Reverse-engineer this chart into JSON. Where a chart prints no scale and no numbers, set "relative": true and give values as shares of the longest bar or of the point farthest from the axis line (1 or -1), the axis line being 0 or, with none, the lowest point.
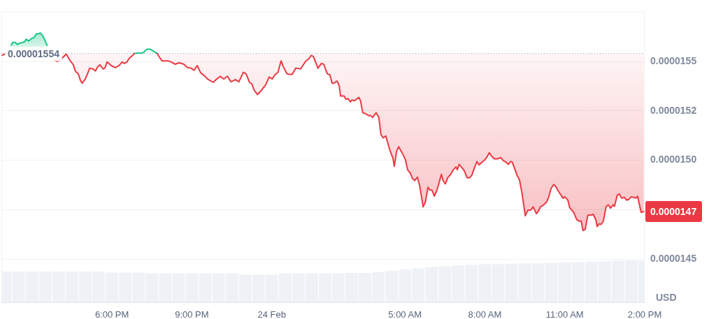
{
  "chart_data": [
    {
      "type": "line",
      "ylabel": "USD",
      "x": [
        "--02-23T13:53",
        "--02-23T14:01",
        "--02-23T14:13",
        "--02-23T14:16",
        "--02-23T14:22",
        "--02-23T14:27",
        "--02-23T14:32",
        "--02-23T14:38",
        "--02-23T14:43",
        "--02-23T14:47",
        "--02-23T14:52",
        "--02-23T14:59",
        "--02-23T15:04",
        "--02-23T15:10",
        "--02-23T15:14",
        "--02-23T15:19",
        "--02-23T15:25",
        "--02-23T15:34",
        "--02-23T15:38",
        "--02-23T15:50",
        "--02-23T15:57",
        "--02-23T16:05",
        "--02-23T16:17",
        "--02-23T16:25",
        "--02-23T16:33",
        "--02-23T16:38",
        "--02-23T16:44",
        "--02-23T16:49",
        "--02-23T16:53",
        "--02-23T17:00",
        "--02-23T17:05",
        "--02-23T17:10",
        "--02-23T17:17",
        "--02-23T17:23",
        "--02-23T17:28",
        "--02-23T17:33",
        "--02-23T17:40",
        "--02-23T17:44",
        "--02-23T17:49",
        "--02-23T17:55",
        "--02-23T18:00",
        "--02-23T18:08",
        "--02-23T18:16",
        "--02-23T18:23",
        "--02-23T18:28",
        "--02-23T18:34",
        "--02-23T18:39",
        "--02-23T18:47",
        "--02-23T18:50",
        "--02-23T19:00",
        "--02-23T19:06",
        "--02-23T19:11",
        "--02-23T19:19",
        "--02-23T19:26",
        "--02-23T19:34",
        "--02-23T19:42",
        "--02-23T19:47",
        "--02-23T19:53",
        "--02-23T20:06",
        "--02-23T20:14",
        "--02-23T20:22",
        "--02-23T20:32",
        "--02-23T20:42",
        "--02-23T20:50",
        "--02-23T20:58",
        "--02-23T21:05",
        "--02-23T21:12",
        "--02-23T21:20",
        "--02-23T21:28",
        "--02-23T21:35",
        "--02-23T21:48",
        "--02-23T21:56",
        "--02-23T22:04",
        "--02-23T22:12",
        "--02-23T22:20",
        "--02-23T22:28",
        "--02-23T22:38",
        "--02-23T22:46",
        "--02-23T22:56",
        "--02-23T23:02",
        "--02-23T23:10",
        "--02-23T23:15",
        "--02-23T23:20",
        "--02-23T23:28",
        "--02-23T23:35",
        "--02-23T23:46",
        "--02-23T23:54",
        "--02-24T00:01",
        "--02-24T00:07",
        "--02-24T00:14",
        "--02-24T00:21",
        "--02-24T00:26",
        "--02-24T00:34",
        "--02-24T00:38",
        "--02-24T00:46",
        "--02-24T00:54",
        "--02-24T01:05",
        "--02-24T01:16",
        "--02-24T01:24",
        "--02-24T01:29",
        "--02-24T01:34",
        "--02-24T01:44",
        "--02-24T01:52",
        "--02-24T01:57",
        "--02-24T02:05",
        "--02-24T02:11",
        "--02-24T02:16",
        "--02-24T02:20",
        "--02-24T02:27",
        "--02-24T02:32",
        "--02-24T02:35",
        "--02-24T02:43",
        "--02-24T02:47",
        "--02-24T02:52",
        "--02-24T02:57",
        "--02-24T03:00",
        "--02-24T03:06",
        "--02-24T03:16",
        "--02-24T03:20",
        "--02-24T03:25",
        "--02-24T03:31",
        "--02-24T03:38",
        "--02-24T03:43",
        "--02-24T03:47",
        "--02-24T03:55",
        "--02-24T04:01",
        "--02-24T04:06",
        "--02-24T04:11",
        "--02-24T04:17",
        "--02-24T04:22",
        "--02-24T04:26",
        "--02-24T04:33",
        "--02-24T04:36",
        "--02-24T04:41",
        "--02-24T04:46",
        "--02-24T04:50",
        "--02-24T04:56",
        "--02-24T05:01",
        "--02-24T05:06",
        "--02-24T05:12",
        "--02-24T05:17",
        "--02-24T05:22",
        "--02-24T05:28",
        "--02-24T05:33",
        "--02-24T05:41",
        "--02-24T05:46",
        "--02-24T05:52",
        "--02-24T05:56",
        "--02-24T06:01",
        "--02-24T06:06",
        "--02-24T06:11",
        "--02-24T06:15",
        "--02-24T06:22",
        "--02-24T06:26",
        "--02-24T06:31",
        "--02-24T06:37",
        "--02-24T06:42",
        "--02-24T06:49",
        "--02-24T06:55",
        "--02-24T06:58",
        "--02-24T07:02",
        "--02-24T07:07",
        "--02-24T07:13",
        "--02-24T07:20",
        "--02-24T07:26",
        "--02-24T07:31",
        "--02-24T07:35",
        "--02-24T07:42",
        "--02-24T07:47",
        "--02-24T07:55",
        "--02-24T07:59",
        "--02-24T08:05",
        "--02-24T08:10",
        "--02-24T08:15",
        "--02-24T08:21",
        "--02-24T08:29",
        "--02-24T08:35",
        "--02-24T08:42",
        "--02-24T08:48",
        "--02-24T08:53",
        "--02-24T08:58",
        "--02-24T09:02",
        "--02-24T09:08",
        "--02-24T09:13",
        "--02-24T09:18",
        "--02-24T09:24",
        "--02-24T09:31",
        "--02-24T09:37",
        "--02-24T09:43",
        "--02-24T09:49",
        "--02-24T09:56",
        "--02-24T10:01",
        "--02-24T10:05",
        "--02-24T10:11",
        "--02-24T10:19",
        "--02-24T10:24",
        "--02-24T10:29",
        "--02-24T10:35",
        "--02-24T10:40",
        "--02-24T10:44",
        "--02-24T10:51",
        "--02-24T10:56",
        "--02-24T11:00",
        "--02-24T11:07",
        "--02-24T11:11",
        "--02-24T11:20",
        "--02-24T11:27",
        "--02-24T11:32",
        "--02-24T11:37",
        "--02-24T11:41",
        "--02-24T11:46",
        "--02-24T11:52",
        "--02-24T11:59",
        "--02-24T12:04",
        "--02-24T12:10",
        "--02-24T12:13",
        "--02-24T12:17",
        "--02-24T12:22",
        "--02-24T12:27",
        "--02-24T12:33",
        "--02-24T12:38",
        "--02-24T12:43",
        "--02-24T12:49",
        "--02-24T12:52",
        "--02-24T12:58",
        "--02-24T13:03",
        "--02-24T13:08",
        "--02-24T13:14",
        "--02-24T13:19",
        "--02-24T13:24",
        "--02-24T13:30",
        "--02-24T13:35",
        "--02-24T13:40",
        "--02-24T13:44",
        "--02-24T13:52",
        "--02-24T13:58"
      ],
      "series": [
        {
          "color": "#ea3943",
          "values": [
            1.5531e-05,
            1.554e-05,
            null,
            null,
            null,
            null,
            null,
            null,
            null,
            null,
            null,
            null,
            null,
            null,
            null,
            null,
            null,
            null,
            null,
            1.5507e-05,
            1.55e-05,
            1.551e-05,
            1.5537e-05,
            1.5507e-05,
            1.5483e-05,
            1.5449e-05,
            1.5438e-05,
            1.5404e-05,
            1.539e-05,
            1.5411e-05,
            1.5438e-05,
            1.5466e-05,
            1.5462e-05,
            1.5452e-05,
            1.5473e-05,
            1.5483e-05,
            1.5462e-05,
            1.5466e-05,
            1.5497e-05,
            1.5486e-05,
            1.5476e-05,
            1.5469e-05,
            1.5479e-05,
            1.5497e-05,
            1.549e-05,
            1.5497e-05,
            1.5517e-05,
            1.5531e-05,
            1.554e-05,
            null,
            null,
            null,
            null,
            null,
            null,
            1.554e-05,
            1.5521e-05,
            1.5503e-05,
            1.5503e-05,
            1.5497e-05,
            1.5486e-05,
            1.5493e-05,
            1.5486e-05,
            1.5469e-05,
            1.5466e-05,
            1.5455e-05,
            1.5479e-05,
            1.5442e-05,
            1.5428e-05,
            1.5411e-05,
            1.5394e-05,
            1.5411e-05,
            1.5425e-05,
            1.5411e-05,
            1.5425e-05,
            1.5397e-05,
            1.5408e-05,
            1.5397e-05,
            1.5445e-05,
            1.5438e-05,
            1.5394e-05,
            1.5387e-05,
            1.5356e-05,
            1.5332e-05,
            1.5349e-05,
            1.538e-05,
            1.5421e-05,
            1.5411e-05,
            1.5432e-05,
            1.5445e-05,
            1.5503e-05,
            1.5473e-05,
            1.5438e-05,
            1.5435e-05,
            1.5435e-05,
            1.5466e-05,
            1.5462e-05,
            1.55e-05,
            1.5514e-05,
            1.5531e-05,
            1.5524e-05,
            1.5466e-05,
            1.549e-05,
            1.5486e-05,
            1.5438e-05,
            1.5432e-05,
            1.539e-05,
            1.539e-05,
            1.5401e-05,
            1.5377e-05,
            1.5325e-05,
            1.5325e-05,
            1.5308e-05,
            1.5312e-05,
            1.5295e-05,
            1.5305e-05,
            1.5301e-05,
            1.5318e-05,
            1.5301e-05,
            1.524e-05,
            1.5236e-05,
            1.5226e-05,
            1.5226e-05,
            1.5216e-05,
            1.524e-05,
            1.5219e-05,
            1.513e-05,
            1.5113e-05,
            1.5123e-05,
            1.5082e-05,
            1.5051e-05,
            1.501e-05,
            1.4969e-05,
            1.5044e-05,
            1.5068e-05,
            1.5051e-05,
            1.5027e-05,
            1.5003e-05,
            1.4952e-05,
            1.4935e-05,
            1.4907e-05,
            1.4897e-05,
            1.4914e-05,
            1.4873e-05,
            1.4764e-05,
            1.4788e-05,
            1.4863e-05,
            1.4849e-05,
            1.4849e-05,
            1.4818e-05,
            1.4842e-05,
            1.487e-05,
            1.4928e-05,
            1.4897e-05,
            1.488e-05,
            1.4914e-05,
            1.4925e-05,
            1.4952e-05,
            1.4966e-05,
            1.4952e-05,
            1.4979e-05,
            1.4966e-05,
            1.4949e-05,
            1.4911e-05,
            1.4911e-05,
            1.4925e-05,
            1.4952e-05,
            1.4993e-05,
            1.4976e-05,
            1.4993e-05,
            1.5e-05,
            1.5017e-05,
            1.5038e-05,
            1.5021e-05,
            1.5007e-05,
            1.5007e-05,
            1.5014e-05,
            1.4997e-05,
            1.499e-05,
            1.4979e-05,
            1.4993e-05,
            1.499e-05,
            1.4952e-05,
            1.4921e-05,
            1.4901e-05,
            1.4829e-05,
            1.4719e-05,
            1.4747e-05,
            1.4747e-05,
            1.4764e-05,
            1.4729e-05,
            1.4743e-05,
            1.4764e-05,
            1.4771e-05,
            1.4788e-05,
            1.4815e-05,
            1.4856e-05,
            1.4877e-05,
            1.4866e-05,
            1.4849e-05,
            1.4825e-05,
            1.4808e-05,
            1.4815e-05,
            1.4798e-05,
            1.476e-05,
            1.4736e-05,
            1.4699e-05,
            1.4692e-05,
            1.4692e-05,
            1.4644e-05,
            1.465e-05,
            1.4722e-05,
            1.4722e-05,
            1.4726e-05,
            1.4699e-05,
            1.4664e-05,
            1.4678e-05,
            1.4675e-05,
            1.4692e-05,
            1.4764e-05,
            1.4774e-05,
            1.4757e-05,
            1.4774e-05,
            1.4767e-05,
            1.4822e-05,
            1.4829e-05,
            1.4808e-05,
            1.4812e-05,
            1.4798e-05,
            1.4801e-05,
            1.4815e-05,
            1.4812e-05,
            1.4808e-05,
            1.4818e-05,
            1.4736e-05,
            1.474e-05
          ],
          "lower": [
            null,
            null,
            null,
            null,
            null,
            null,
            null,
            null,
            null,
            null,
            null,
            null,
            null,
            null,
            null,
            null,
            null,
            null,
            null,
            1.5507e-05,
            1.55e-05,
            1.551e-05,
            1.5537e-05,
            1.5507e-05,
            1.5483e-05,
            1.5449e-05,
            1.5438e-05,
            1.5404e-05,
            1.539e-05,
            1.5411e-05,
            1.5438e-05,
            1.5466e-05,
            1.5462e-05,
            1.5452e-05,
            1.5473e-05,
            1.5483e-05,
            1.5462e-05,
            1.5466e-05,
            1.5497e-05,
            1.5486e-05,
            1.5476e-05,
            1.5469e-05,
            1.5479e-05,
            1.5497e-05,
            1.549e-05,
            1.5497e-05,
            1.5517e-05,
            1.5531e-05,
            1.554e-05,
            null,
            null,
            null,
            null,
            null,
            null,
            1.554e-05,
            1.5521e-05,
            1.5503e-05,
            1.5503e-05,
            1.5497e-05,
            1.5486e-05,
            1.5493e-05,
            1.5486e-05,
            1.5469e-05,
            1.5466e-05,
            1.5455e-05,
            1.5479e-05,
            1.5442e-05,
            1.5428e-05,
            1.5411e-05,
            1.5394e-05,
            1.5411e-05,
            1.5425e-05,
            1.5411e-05,
            1.5425e-05,
            1.5397e-05,
            1.5408e-05,
            1.5397e-05,
            1.5445e-05,
            1.5438e-05,
            1.5394e-05,
            1.5387e-05,
            1.5356e-05,
            1.5332e-05,
            1.5349e-05,
            1.538e-05,
            1.5421e-05,
            1.5411e-05,
            1.5432e-05,
            1.5445e-05,
            1.5503e-05,
            1.5473e-05,
            1.5438e-05,
            1.5435e-05,
            1.5435e-05,
            1.5466e-05,
            1.5462e-05,
            1.55e-05,
            1.5514e-05,
            1.5531e-05,
            1.5524e-05,
            1.5466e-05,
            1.549e-05,
            1.5486e-05,
            1.5438e-05,
            1.5432e-05,
            1.539e-05,
            1.539e-05,
            1.5401e-05,
            1.5377e-05,
            1.5325e-05,
            1.5325e-05,
            1.5308e-05,
            1.5312e-05,
            1.5295e-05,
            1.5305e-05,
            1.5301e-05,
            1.5318e-05,
            1.5301e-05,
            1.524e-05,
            1.5236e-05,
            1.5226e-05,
            1.5226e-05,
            1.5216e-05,
            1.524e-05,
            1.5219e-05,
            1.513e-05,
            1.5113e-05,
            1.5123e-05,
            1.5082e-05,
            1.5051e-05,
            1.501e-05,
            1.4969e-05,
            1.5044e-05,
            1.5068e-05,
            1.5051e-05,
            1.5027e-05,
            1.5003e-05,
            1.4952e-05,
            1.4935e-05,
            1.4907e-05,
            1.4897e-05,
            1.4914e-05,
            1.4873e-05,
            1.4764e-05,
            1.4788e-05,
            1.4863e-05,
            1.4849e-05,
            1.4849e-05,
            1.4818e-05,
            1.4842e-05,
            1.487e-05,
            1.4928e-05,
            1.4897e-05,
            1.488e-05,
            1.4914e-05,
            1.4925e-05,
            1.4952e-05,
            1.4966e-05,
            1.4952e-05,
            1.4979e-05,
            1.4966e-05,
            1.4949e-05,
            1.4911e-05,
            1.4911e-05,
            1.4925e-05,
            1.4952e-05,
            1.4993e-05,
            1.4976e-05,
            1.4993e-05,
            1.5e-05,
            1.5017e-05,
            1.5038e-05,
            1.5021e-05,
            1.5007e-05,
            1.5007e-05,
            1.5014e-05,
            1.4997e-05,
            1.499e-05,
            1.4979e-05,
            1.4993e-05,
            1.499e-05,
            1.4952e-05,
            1.4921e-05,
            1.4901e-05,
            1.4829e-05,
            1.4719e-05,
            1.4747e-05,
            1.4747e-05,
            1.4764e-05,
            1.4729e-05,
            1.4743e-05,
            1.4764e-05,
            1.4771e-05,
            1.4788e-05,
            1.4815e-05,
            1.4856e-05,
            1.4877e-05,
            1.4866e-05,
            1.4849e-05,
            1.4825e-05,
            1.4808e-05,
            1.4815e-05,
            1.4798e-05,
            1.476e-05,
            1.4736e-05,
            1.4699e-05,
            1.4692e-05,
            1.4692e-05,
            1.4644e-05,
            1.465e-05,
            1.4722e-05,
            1.4722e-05,
            1.4726e-05,
            1.4699e-05,
            1.4664e-05,
            1.4678e-05,
            1.4675e-05,
            1.4692e-05,
            1.4764e-05,
            1.4774e-05,
            1.4757e-05,
            1.4774e-05,
            1.4767e-05,
            1.4822e-05,
            1.4829e-05,
            1.4808e-05,
            1.4812e-05,
            1.4798e-05,
            1.4801e-05,
            1.4815e-05,
            1.4812e-05,
            1.4808e-05,
            1.4818e-05,
            1.4736e-05,
            1.474e-05
          ],
          "upper": [
            null,
            null,
            null,
            null,
            null,
            null,
            null,
            null,
            null,
            null,
            null,
            null,
            null,
            null,
            null,
            null,
            null,
            null,
            null,
            1.554e-05,
            1.554e-05,
            1.554e-05,
            1.554e-05,
            1.554e-05,
            1.554e-05,
            1.554e-05,
            1.554e-05,
            1.554e-05,
            1.554e-05,
            1.554e-05,
            1.554e-05,
            1.554e-05,
            1.554e-05,
            1.554e-05,
            1.554e-05,
            1.554e-05,
            1.554e-05,
            1.554e-05,
            1.554e-05,
            1.554e-05,
            1.554e-05,
            1.554e-05,
            1.554e-05,
            1.554e-05,
            1.554e-05,
            1.554e-05,
            1.554e-05,
            1.554e-05,
            1.554e-05,
            null,
            null,
            null,
            null,
            null,
            null,
            1.554e-05,
            1.554e-05,
            1.554e-05,
            1.554e-05,
            1.554e-05,
            1.554e-05,
            1.554e-05,
            1.554e-05,
            1.554e-05,
            1.554e-05,
            1.554e-05,
            1.554e-05,
            1.554e-05,
            1.554e-05,
            1.554e-05,
            1.554e-05,
            1.554e-05,
            1.554e-05,
            1.554e-05,
            1.554e-05,
            1.554e-05,
            1.554e-05,
            1.554e-05,
            1.554e-05,
            1.554e-05,
            1.554e-05,
            1.554e-05,
            1.554e-05,
            1.554e-05,
            1.554e-05,
            1.554e-05,
            1.554e-05,
            1.554e-05,
            1.554e-05,
            1.554e-05,
            1.554e-05,
            1.554e-05,
            1.554e-05,
            1.554e-05,
            1.554e-05,
            1.554e-05,
            1.554e-05,
            1.554e-05,
            1.554e-05,
            1.554e-05,
            1.554e-05,
            1.554e-05,
            1.554e-05,
            1.554e-05,
            1.554e-05,
            1.554e-05,
            1.554e-05,
            1.554e-05,
            1.554e-05,
            1.554e-05,
            1.554e-05,
            1.554e-05,
            1.554e-05,
            1.554e-05,
            1.554e-05,
            1.554e-05,
            1.554e-05,
            1.554e-05,
            1.554e-05,
            1.554e-05,
            1.554e-05,
            1.554e-05,
            1.554e-05,
            1.554e-05,
            1.554e-05,
            1.554e-05,
            1.554e-05,
            1.554e-05,
            1.554e-05,
            1.554e-05,
            1.554e-05,
            1.554e-05,
            1.554e-05,
            1.554e-05,
            1.554e-05,
            1.554e-05,
            1.554e-05,
            1.554e-05,
            1.554e-05,
            1.554e-05,
            1.554e-05,
            1.554e-05,
            1.554e-05,
            1.554e-05,
            1.554e-05,
            1.554e-05,
            1.554e-05,
            1.554e-05,
            1.554e-05,
            1.554e-05,
            1.554e-05,
            1.554e-05,
            1.554e-05,
            1.554e-05,
            1.554e-05,
            1.554e-05,
            1.554e-05,
            1.554e-05,
            1.554e-05,
            1.554e-05,
            1.554e-05,
            1.554e-05,
            1.554e-05,
            1.554e-05,
            1.554e-05,
            1.554e-05,
            1.554e-05,
            1.554e-05,
            1.554e-05,
            1.554e-05,
            1.554e-05,
            1.554e-05,
            1.554e-05,
            1.554e-05,
            1.554e-05,
            1.554e-05,
            1.554e-05,
            1.554e-05,
            1.554e-05,
            1.554e-05,
            1.554e-05,
            1.554e-05,
            1.554e-05,
            1.554e-05,
            1.554e-05,
            1.554e-05,
            1.554e-05,
            1.554e-05,
            1.554e-05,
            1.554e-05,
            1.554e-05,
            1.554e-05,
            1.554e-05,
            1.554e-05,
            1.554e-05,
            1.554e-05,
            1.554e-05,
            1.554e-05,
            1.554e-05,
            1.554e-05,
            1.554e-05,
            1.554e-05,
            1.554e-05,
            1.554e-05,
            1.554e-05,
            1.554e-05,
            1.554e-05,
            1.554e-05,
            1.554e-05,
            1.554e-05,
            1.554e-05,
            1.554e-05,
            1.554e-05,
            1.554e-05,
            1.554e-05,
            1.554e-05,
            1.554e-05,
            1.554e-05,
            1.554e-05,
            1.554e-05,
            1.554e-05,
            1.554e-05,
            1.554e-05,
            1.554e-05,
            1.554e-05,
            1.554e-05,
            1.554e-05,
            1.554e-05,
            1.554e-05,
            1.554e-05,
            1.554e-05,
            1.554e-05,
            1.554e-05,
            1.554e-05,
            1.554e-05,
            1.554e-05
          ]
        },
        {
          "color": "#16c784",
          "x": [
            "--02-23T14:13",
            "--02-23T14:16",
            "--02-23T14:22",
            "--02-23T14:27",
            "--02-23T14:32",
            "--02-23T14:38",
            "--02-23T14:43",
            "--02-23T14:47",
            "--02-23T14:52",
            "--02-23T14:59",
            "--02-23T15:04",
            "--02-23T15:10",
            "--02-23T15:14",
            "--02-23T15:19",
            "--02-23T15:25",
            "--02-23T15:34"
          ],
          "values": [
            1.5582e-05,
            1.5596e-05,
            1.5596e-05,
            1.5586e-05,
            1.5592e-05,
            1.5596e-05,
            1.5599e-05,
            1.5613e-05,
            1.5603e-05,
            1.5616e-05,
            1.562e-05,
            1.564e-05,
            1.564e-05,
            1.5644e-05,
            1.5627e-05,
            1.5582e-05
          ],
          "lower": [
            1.554e-05,
            1.554e-05,
            1.554e-05,
            1.554e-05,
            1.554e-05,
            1.554e-05,
            1.554e-05,
            1.554e-05,
            1.554e-05,
            1.554e-05,
            1.554e-05,
            1.554e-05,
            1.554e-05,
            1.554e-05,
            1.554e-05,
            1.554e-05
          ],
          "upper": [
            1.5582e-05,
            1.5596e-05,
            1.5596e-05,
            1.5586e-05,
            1.5592e-05,
            1.5596e-05,
            1.5599e-05,
            1.5613e-05,
            1.5603e-05,
            1.5616e-05,
            1.562e-05,
            1.564e-05,
            1.564e-05,
            1.5644e-05,
            1.5627e-05,
            1.5582e-05
          ]
        },
        {
          "color": "#16c784",
          "x": [
            "--02-23T18:50",
            "--02-23T19:00",
            "--02-23T19:06",
            "--02-23T19:11",
            "--02-23T19:19",
            "--02-23T19:26",
            "--02-23T19:34",
            "--02-23T19:42"
          ],
          "values": [
            1.554e-05,
            1.5542e-05,
            1.5542e-05,
            1.5545e-05,
            1.5562e-05,
            1.5562e-05,
            1.5551e-05,
            1.554e-05
          ]
        }
      ],
      "xlim": [
        "--02-23T13:51",
        "--02-24T14:00"
      ],
      "ylim": [
        1.4281e-05,
        1.5753e-05
      ],
      "yticks": [
        {
          "value": 1.55e-05,
          "label": "0.0000155"
        },
        {
          "value": 1.525e-05,
          "label": "0.0000152"
        },
        {
          "value": 1.5e-05,
          "label": "0.0000150"
        },
        {
          "value": 1.475e-05,
          "label": null
        },
        {
          "value": 1.45e-05,
          "label": "0.0000145"
        }
      ],
      "grid": "y",
      "tick_labels": "y",
      "ref_lines": [
        {
          "axis": "y",
          "value": 1.554e-05,
          "label": "0.00001554",
          "line_style": "dotted",
          "color": "#a1a7b3"
        }
      ],
      "annotations": [
        "0.0000147"
      ]
    },
    {
      "type": "bar",
      "relative": true,
      "color": "#eef1f5",
      "x": [
        "--02-23T14:00",
        "--02-23T14:30",
        "--02-23T15:00",
        "--02-23T15:30",
        "--02-23T16:00",
        "--02-23T16:30",
        "--02-23T17:00",
        "--02-23T17:30",
        "--02-23T18:00",
        "--02-23T18:30",
        "--02-23T19:00",
        "--02-23T19:30",
        "--02-23T20:00",
        "--02-23T20:30",
        "--02-23T21:00",
        "--02-23T21:30",
        "--02-23T22:00",
        "--02-23T22:30",
        "--02-23T23:00",
        "--02-23T23:30",
        "--02-24T00:00",
        "--02-24T00:30",
        "--02-24T01:00",
        "--02-24T01:30",
        "--02-24T02:00",
        "--02-24T02:30",
        "--02-24T03:00",
        "--02-24T03:30",
        "--02-24T04:00",
        "--02-24T04:30",
        "--02-24T05:00",
        "--02-24T05:30",
        "--02-24T06:00",
        "--02-24T06:30",
        "--02-24T07:00",
        "--02-24T07:30",
        "--02-24T08:00",
        "--02-24T08:30",
        "--02-24T09:00",
        "--02-24T09:30",
        "--02-24T10:00",
        "--02-24T10:30",
        "--02-24T11:00",
        "--02-24T11:30",
        "--02-24T12:00",
        "--02-24T12:30",
        "--02-24T13:00",
        "--02-24T13:30",
        "--02-24T14:00"
      ],
      "values": [
        0.73,
        0.73,
        0.73,
        0.73,
        0.73,
        0.73,
        0.73,
        0.73,
        0.71,
        0.71,
        0.71,
        0.69,
        0.69,
        0.69,
        0.69,
        0.69,
        0.69,
        0.69,
        0.66,
        0.66,
        0.66,
        0.69,
        0.69,
        0.69,
        0.69,
        0.69,
        0.7,
        0.7,
        0.72,
        0.75,
        0.78,
        0.81,
        0.84,
        0.86,
        0.88,
        0.89,
        0.91,
        0.91,
        0.92,
        0.93,
        0.93,
        0.94,
        0.95,
        0.96,
        0.97,
        0.98,
        0.99,
        1,
        1
      ],
      "xlim": [
        "--02-23T13:51",
        "--02-24T14:00"
      ],
      "xticks": [
        {
          "value": "--02-23T18:00",
          "label": "6:00 PM"
        },
        {
          "value": "--02-23T21:00",
          "label": "9:00 PM"
        },
        {
          "value": "--02-24",
          "label": "24 Feb"
        },
        {
          "value": "--02-24T05:00",
          "label": "5:00 AM"
        },
        {
          "value": "--02-24T08:00",
          "label": "8:00 AM"
        },
        {
          "value": "--02-24T11:00",
          "label": "11:00 AM"
        },
        {
          "value": "--02-24T14:00",
          "label": "2:00 PM"
        }
      ],
      "tick_labels": "x"
    }
  ]
}
